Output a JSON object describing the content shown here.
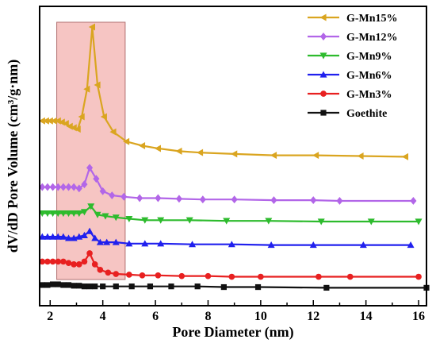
{
  "chart_data": {
    "type": "line",
    "xlabel": "Pore Diameter (nm)",
    "ylabel": "dV/dD Pore Volume (cm³/g·nm)",
    "xlim": [
      1.6,
      16.3
    ],
    "xticks": [
      2,
      4,
      6,
      8,
      10,
      12,
      14,
      16
    ],
    "y_tick_labels_shown": false,
    "grid": false,
    "legend": "top-right",
    "highlight_region": {
      "x_range": [
        2.25,
        4.85
      ],
      "color": "#f4b6b4"
    },
    "series": [
      {
        "name": "G-Mn15%",
        "color": "#daa520",
        "marker": "triangle-left",
        "x": [
          1.7,
          1.85,
          2.0,
          2.15,
          2.3,
          2.45,
          2.6,
          2.75,
          2.9,
          3.05,
          3.2,
          3.4,
          3.6,
          3.8,
          4.05,
          4.4,
          4.9,
          5.5,
          6.1,
          6.9,
          7.7,
          9.0,
          10.5,
          12.1,
          13.8,
          15.5
        ],
        "y": [
          1.22,
          1.22,
          1.22,
          1.22,
          1.22,
          1.21,
          1.2,
          1.18,
          1.17,
          1.16,
          1.25,
          1.45,
          1.9,
          1.48,
          1.25,
          1.14,
          1.07,
          1.04,
          1.02,
          1.0,
          0.99,
          0.98,
          0.97,
          0.97,
          0.965,
          0.96
        ]
      },
      {
        "name": "G-Mn12%",
        "color": "#b266e8",
        "marker": "diamond",
        "x": [
          1.7,
          1.9,
          2.1,
          2.3,
          2.5,
          2.7,
          2.9,
          3.1,
          3.3,
          3.5,
          3.75,
          4.0,
          4.35,
          4.8,
          5.4,
          6.1,
          6.9,
          7.8,
          9.0,
          10.5,
          12.0,
          13.0,
          15.8
        ],
        "y": [
          0.74,
          0.74,
          0.74,
          0.74,
          0.74,
          0.74,
          0.74,
          0.73,
          0.76,
          0.88,
          0.8,
          0.71,
          0.68,
          0.67,
          0.66,
          0.66,
          0.655,
          0.65,
          0.65,
          0.645,
          0.645,
          0.64,
          0.64
        ]
      },
      {
        "name": "G-Mn9%",
        "color": "#2dbb2d",
        "marker": "triangle-down",
        "x": [
          1.7,
          1.9,
          2.1,
          2.3,
          2.5,
          2.7,
          2.9,
          3.1,
          3.3,
          3.55,
          3.8,
          4.1,
          4.5,
          5.0,
          5.6,
          6.2,
          7.3,
          8.7,
          10.3,
          12.3,
          14.2,
          16.0
        ],
        "y": [
          0.55,
          0.55,
          0.55,
          0.55,
          0.55,
          0.55,
          0.55,
          0.55,
          0.56,
          0.6,
          0.54,
          0.53,
          0.52,
          0.51,
          0.5,
          0.5,
          0.5,
          0.495,
          0.495,
          0.49,
          0.49,
          0.49
        ]
      },
      {
        "name": "G-Mn6%",
        "color": "#2020ee",
        "marker": "triangle-up",
        "x": [
          1.7,
          1.9,
          2.1,
          2.3,
          2.5,
          2.7,
          2.9,
          3.1,
          3.3,
          3.5,
          3.7,
          3.9,
          4.15,
          4.5,
          5.0,
          5.6,
          6.2,
          7.4,
          8.9,
          10.4,
          12.0,
          13.9,
          15.7
        ],
        "y": [
          0.38,
          0.38,
          0.38,
          0.38,
          0.38,
          0.37,
          0.37,
          0.38,
          0.39,
          0.42,
          0.37,
          0.34,
          0.34,
          0.34,
          0.33,
          0.33,
          0.33,
          0.325,
          0.325,
          0.32,
          0.32,
          0.32,
          0.32
        ]
      },
      {
        "name": "G-Mn3%",
        "color": "#e82020",
        "marker": "circle",
        "x": [
          1.7,
          1.9,
          2.1,
          2.3,
          2.5,
          2.7,
          2.9,
          3.1,
          3.3,
          3.5,
          3.7,
          3.9,
          4.2,
          4.5,
          5.0,
          5.5,
          6.1,
          7.0,
          8.0,
          8.9,
          10.0,
          12.2,
          13.4,
          16.0
        ],
        "y": [
          0.2,
          0.2,
          0.2,
          0.2,
          0.2,
          0.19,
          0.18,
          0.18,
          0.2,
          0.26,
          0.18,
          0.14,
          0.12,
          0.11,
          0.105,
          0.1,
          0.1,
          0.095,
          0.095,
          0.09,
          0.09,
          0.09,
          0.09,
          0.09
        ]
      },
      {
        "name": "Goethite",
        "color": "#111111",
        "marker": "square",
        "x": [
          1.7,
          1.9,
          2.1,
          2.3,
          2.5,
          2.7,
          2.9,
          3.1,
          3.3,
          3.5,
          3.7,
          4.0,
          4.5,
          5.1,
          5.8,
          6.6,
          7.6,
          8.6,
          9.9,
          12.5,
          16.3
        ],
        "y": [
          0.03,
          0.03,
          0.035,
          0.035,
          0.03,
          0.03,
          0.025,
          0.025,
          0.02,
          0.02,
          0.02,
          0.02,
          0.02,
          0.02,
          0.02,
          0.02,
          0.02,
          0.015,
          0.015,
          0.01,
          0.01
        ]
      }
    ]
  }
}
